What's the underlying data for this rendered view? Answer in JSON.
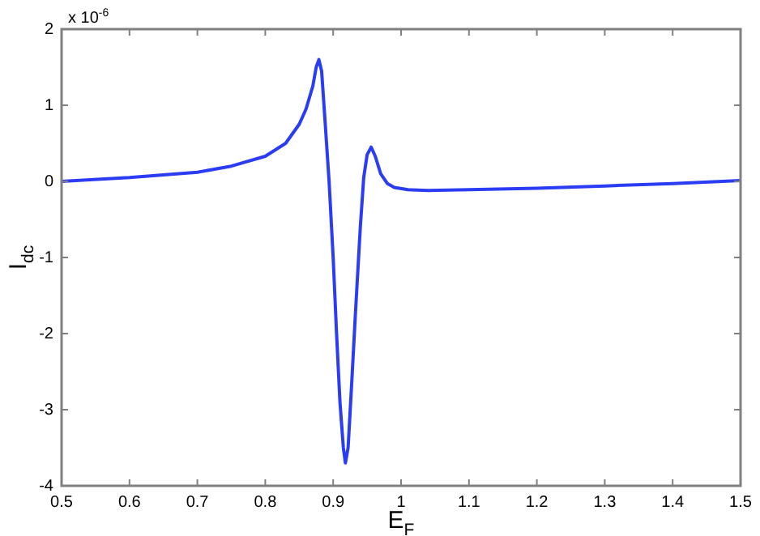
{
  "chart_data": {
    "type": "line",
    "xlabel": "E$_{F}$",
    "ylabel": "I$_{dc}$",
    "annotations": [
      "x 10$^{-6}$"
    ],
    "xlim": [
      0.5,
      1.5
    ],
    "xticks": [
      0.5,
      0.6,
      0.7,
      0.8,
      0.9,
      1,
      1.1,
      1.2,
      1.3,
      1.4,
      1.5
    ],
    "ylim": [
      -4,
      2
    ],
    "yticks": [
      -4,
      -3,
      -2,
      -1,
      0,
      1,
      2
    ],
    "grid": false,
    "legend": false,
    "marker": "none",
    "line_style": "solid",
    "series": [
      {
        "color": "#2b3cf5",
        "x": [
          0.5,
          0.6,
          0.7,
          0.75,
          0.8,
          0.83,
          0.85,
          0.86,
          0.87,
          0.875,
          0.879,
          0.883,
          0.888,
          0.894,
          0.9,
          0.905,
          0.91,
          0.915,
          0.918,
          0.922,
          0.927,
          0.933,
          0.94,
          0.945,
          0.95,
          0.956,
          0.962,
          0.97,
          0.98,
          0.99,
          1.01,
          1.04,
          1.1,
          1.2,
          1.3,
          1.4,
          1.5
        ],
        "values": [
          0.0,
          0.05,
          0.12,
          0.2,
          0.33,
          0.5,
          0.75,
          0.95,
          1.25,
          1.5,
          1.6,
          1.45,
          0.8,
          0.0,
          -1.0,
          -2.0,
          -2.9,
          -3.5,
          -3.7,
          -3.5,
          -2.7,
          -1.7,
          -0.6,
          0.05,
          0.35,
          0.45,
          0.33,
          0.1,
          -0.03,
          -0.08,
          -0.11,
          -0.12,
          -0.11,
          -0.09,
          -0.06,
          -0.03,
          0.01
        ]
      }
    ]
  }
}
